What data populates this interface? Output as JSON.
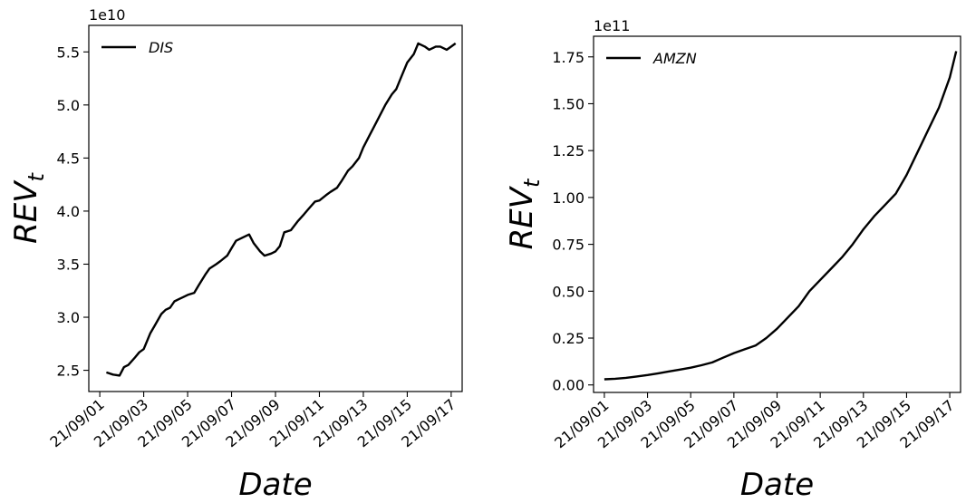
{
  "chart_data": [
    {
      "type": "line",
      "xlabel": "Date",
      "ylabel_main": "REV",
      "ylabel_sub": "t",
      "offset_text": "1e10",
      "legend_position": "upper-left",
      "grid": false,
      "xlim_days": [
        0.5,
        17.5
      ],
      "ylim": [
        2.3,
        5.75
      ],
      "x_tick_labels": [
        "21/09/01",
        "21/09/03",
        "21/09/05",
        "21/09/07",
        "21/09/09",
        "21/09/11",
        "21/09/13",
        "21/09/15",
        "21/09/17"
      ],
      "x_tick_days": [
        1,
        3,
        5,
        7,
        9,
        11,
        13,
        15,
        17
      ],
      "y_ticks": [
        2.5,
        3.0,
        3.5,
        4.0,
        4.5,
        5.0,
        5.5
      ],
      "y_tick_labels": [
        "2.5",
        "3.0",
        "3.5",
        "4.0",
        "4.5",
        "5.0",
        "5.5"
      ],
      "series": [
        {
          "name": "DIS",
          "color": "#000000",
          "x": [
            1.3,
            1.6,
            1.9,
            2.1,
            2.3,
            2.6,
            2.8,
            3.0,
            3.3,
            3.5,
            3.8,
            4.0,
            4.2,
            4.4,
            4.6,
            4.8,
            5.0,
            5.3,
            5.5,
            5.8,
            6.0,
            6.3,
            6.5,
            6.8,
            7.0,
            7.2,
            7.5,
            7.8,
            8.0,
            8.3,
            8.5,
            8.8,
            9.0,
            9.2,
            9.4,
            9.7,
            10.0,
            10.3,
            10.5,
            10.8,
            11.0,
            11.3,
            11.5,
            11.8,
            12.0,
            12.3,
            12.5,
            12.8,
            13.0,
            13.3,
            13.5,
            13.7,
            14.0,
            14.3,
            14.5,
            14.7,
            15.0,
            15.3,
            15.5,
            15.8,
            16.0,
            16.3,
            16.5,
            16.8,
            17.0,
            17.2
          ],
          "values": [
            2.48,
            2.46,
            2.45,
            2.53,
            2.55,
            2.62,
            2.67,
            2.7,
            2.85,
            2.92,
            3.03,
            3.07,
            3.09,
            3.15,
            3.17,
            3.19,
            3.21,
            3.23,
            3.3,
            3.4,
            3.46,
            3.5,
            3.53,
            3.58,
            3.65,
            3.72,
            3.75,
            3.78,
            3.7,
            3.62,
            3.58,
            3.6,
            3.62,
            3.67,
            3.8,
            3.82,
            3.9,
            3.97,
            4.02,
            4.09,
            4.1,
            4.15,
            4.18,
            4.22,
            4.28,
            4.38,
            4.42,
            4.5,
            4.6,
            4.72,
            4.8,
            4.88,
            5.0,
            5.1,
            5.15,
            5.25,
            5.4,
            5.48,
            5.58,
            5.55,
            5.52,
            5.55,
            5.55,
            5.52,
            5.55,
            5.58
          ]
        }
      ]
    },
    {
      "type": "line",
      "xlabel": "Date",
      "ylabel_main": "REV",
      "ylabel_sub": "t",
      "offset_text": "1e11",
      "legend_position": "upper-left",
      "grid": false,
      "xlim_days": [
        0.5,
        17.5
      ],
      "ylim": [
        -0.04,
        1.86
      ],
      "x_tick_labels": [
        "21/09/01",
        "21/09/03",
        "21/09/05",
        "21/09/07",
        "21/09/09",
        "21/09/11",
        "21/09/13",
        "21/09/15",
        "21/09/17"
      ],
      "x_tick_days": [
        1,
        3,
        5,
        7,
        9,
        11,
        13,
        15,
        17
      ],
      "y_ticks": [
        0.0,
        0.25,
        0.5,
        0.75,
        1.0,
        1.25,
        1.5,
        1.75
      ],
      "y_tick_labels": [
        "0.00",
        "0.25",
        "0.50",
        "0.75",
        "1.00",
        "1.25",
        "1.50",
        "1.75"
      ],
      "series": [
        {
          "name": "AMZN",
          "color": "#000000",
          "x": [
            1.0,
            1.5,
            2.0,
            2.5,
            3.0,
            3.5,
            4.0,
            4.5,
            5.0,
            5.5,
            6.0,
            6.5,
            7.0,
            7.5,
            8.0,
            8.5,
            9.0,
            9.5,
            10.0,
            10.5,
            11.0,
            11.5,
            12.0,
            12.5,
            13.0,
            13.5,
            14.0,
            14.5,
            15.0,
            15.5,
            16.0,
            16.5,
            17.0,
            17.3
          ],
          "values": [
            0.03,
            0.033,
            0.038,
            0.045,
            0.053,
            0.062,
            0.072,
            0.082,
            0.092,
            0.105,
            0.12,
            0.145,
            0.17,
            0.19,
            0.21,
            0.25,
            0.3,
            0.36,
            0.42,
            0.5,
            0.56,
            0.62,
            0.68,
            0.75,
            0.83,
            0.9,
            0.96,
            1.02,
            1.12,
            1.24,
            1.36,
            1.48,
            1.64,
            1.78
          ]
        }
      ]
    }
  ]
}
